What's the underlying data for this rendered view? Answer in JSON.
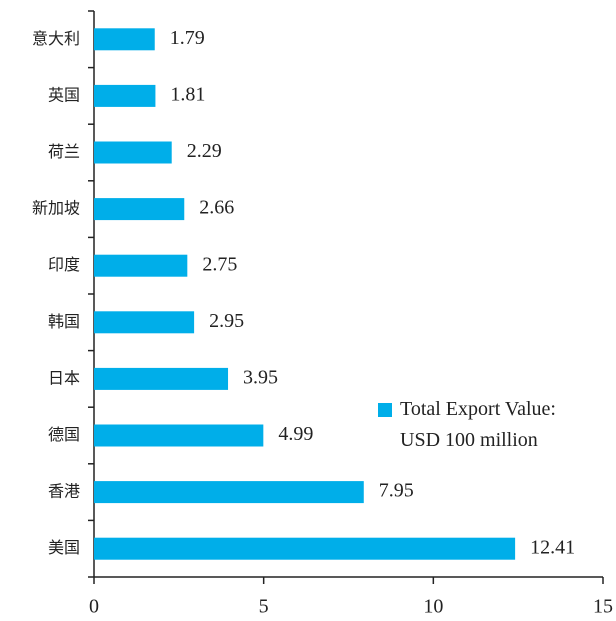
{
  "chart_data": {
    "type": "bar",
    "orientation": "horizontal",
    "categories": [
      "意大利",
      "英国",
      "荷兰",
      "新加坡",
      "印度",
      "韩国",
      "日本",
      "德国",
      "香港",
      "美国"
    ],
    "series": [
      {
        "name": "Total Export Value: USD 100 million",
        "color": "#00aee9",
        "values": [
          1.79,
          1.81,
          2.29,
          2.66,
          2.75,
          2.95,
          3.95,
          4.99,
          7.95,
          12.41
        ]
      }
    ],
    "xlim": [
      0,
      15
    ],
    "xticks": [
      0,
      5,
      10,
      15
    ],
    "grid": false,
    "legend": "right"
  }
}
